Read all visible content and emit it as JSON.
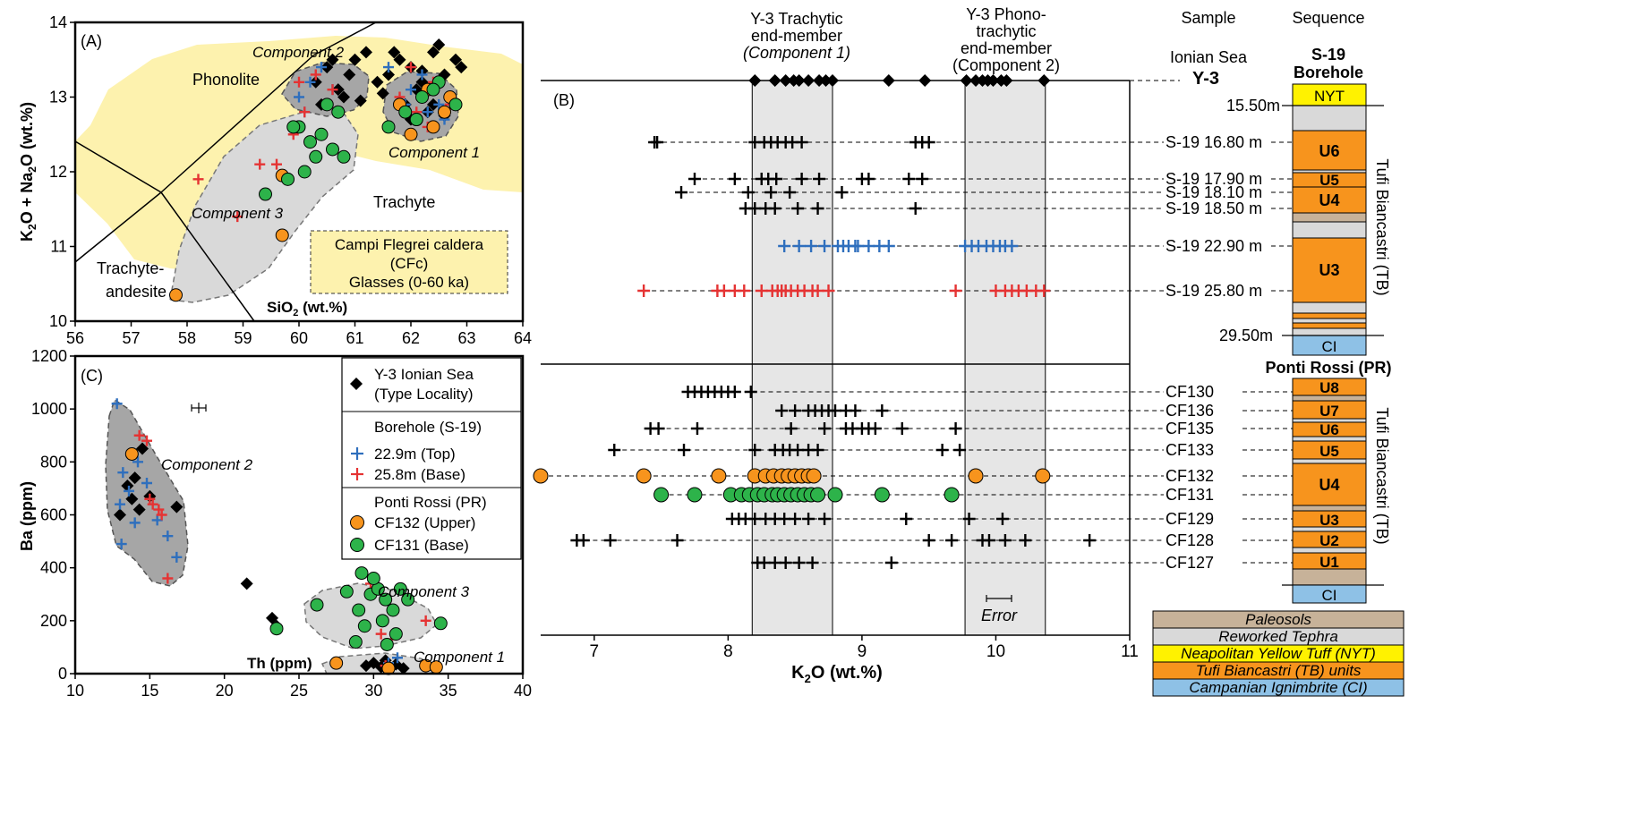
{
  "colors": {
    "tas_field": "#FDF2AE",
    "grey_field": "#D9D9D9",
    "dark_field": "#A6A6A6",
    "top_blue": "#2F6FBD",
    "base_red": "#E53333",
    "upper_orange": "#F7941D",
    "base_green": "#2DB34A",
    "paleosol": "#C7B299",
    "reworked": "#D9D9D9",
    "nyt": "#FFF200",
    "tb": "#F7941D",
    "ci": "#8EC1E6"
  },
  "chart_data": [
    {
      "id": "A",
      "type": "scatter",
      "panel_label": "(A)",
      "xlabel": "SiO2 (wt.%)",
      "ylabel": "K2O + Na2O (wt.%)",
      "xlim": [
        56,
        64
      ],
      "ylim": [
        10,
        14
      ],
      "x_ticks": [
        "56",
        "57",
        "58",
        "59",
        "60",
        "61",
        "62",
        "63",
        "64"
      ],
      "y_ticks": [
        "10",
        "11",
        "12",
        "13",
        "14"
      ],
      "field_labels": [
        "Phonolite",
        "Trachyte",
        "Trachyte-",
        "andesite"
      ],
      "component_labels": [
        "Component 2",
        "Component 1",
        "Component 3"
      ],
      "info_box": [
        "Campi Flegrei caldera",
        "(CFc)",
        "Glasses (0-60 ka)"
      ],
      "series": [
        {
          "name": "Y-3 Ionian Sea",
          "marker": "diamond",
          "color": "#000000",
          "x": [
            60.3,
            60.5,
            60.7,
            60.9,
            61.0,
            61.2,
            60.4,
            60.8,
            61.4,
            61.6,
            61.8,
            62.0,
            62.2,
            62.4,
            62.6,
            62.8,
            62.3,
            62.7,
            61.9,
            62.1,
            62.5,
            62.9,
            62.0,
            62.4,
            61.7,
            60.6,
            61.1,
            62.6,
            62.2,
            61.5
          ],
          "y": [
            13.2,
            13.4,
            13.1,
            13.3,
            13.5,
            13.6,
            12.9,
            13.0,
            13.2,
            13.3,
            13.5,
            13.4,
            13.2,
            13.6,
            13.3,
            13.5,
            12.8,
            13.0,
            12.9,
            13.1,
            13.7,
            13.4,
            12.7,
            12.9,
            13.6,
            13.5,
            12.95,
            12.75,
            13.35,
            13.05
          ]
        },
        {
          "name": "22.9m (Top)",
          "marker": "plus",
          "color": "#2F6FBD",
          "x": [
            60.0,
            60.2,
            60.4,
            60.6,
            60.1,
            61.9,
            62.0,
            62.3,
            62.6,
            61.6,
            62.2,
            62.5
          ],
          "y": [
            13.0,
            13.2,
            13.4,
            13.1,
            12.8,
            12.9,
            13.1,
            12.8,
            12.7,
            13.4,
            13.3,
            12.9
          ]
        },
        {
          "name": "25.8m (Base)",
          "marker": "plus",
          "color": "#E53333",
          "x": [
            58.2,
            58.9,
            59.3,
            59.6,
            59.9,
            60.1,
            60.3,
            60.6,
            60.0,
            61.8,
            62.1,
            62.4,
            62.7,
            62.0,
            62.3
          ],
          "y": [
            11.9,
            11.4,
            12.1,
            12.1,
            12.5,
            12.8,
            13.3,
            13.1,
            13.2,
            13.0,
            12.8,
            13.2,
            12.9,
            13.4,
            12.6
          ]
        },
        {
          "name": "CF132 (Upper)",
          "marker": "circle",
          "color": "#F7941D",
          "x": [
            57.8,
            59.7,
            59.7,
            61.8,
            62.1,
            62.4,
            62.6,
            62.3,
            62.7,
            62.0
          ],
          "y": [
            10.35,
            11.15,
            11.95,
            12.9,
            12.7,
            12.6,
            12.8,
            13.1,
            13.0,
            12.5
          ]
        },
        {
          "name": "CF131 (Base)",
          "marker": "circle",
          "color": "#2DB34A",
          "x": [
            59.4,
            59.8,
            60.0,
            60.2,
            60.4,
            60.6,
            60.8,
            60.1,
            60.5,
            59.9,
            60.3,
            60.7,
            61.6,
            61.9,
            62.2,
            62.5,
            62.8,
            62.1,
            62.4
          ],
          "y": [
            11.7,
            11.9,
            12.6,
            12.4,
            12.5,
            12.3,
            12.2,
            12.0,
            12.9,
            12.6,
            12.2,
            12.8,
            12.6,
            12.8,
            13.0,
            13.2,
            12.9,
            12.7,
            13.1
          ]
        }
      ]
    },
    {
      "id": "B",
      "type": "scatter",
      "panel_label": "(B)",
      "xlabel": "K2O (wt.%)",
      "xlim": [
        6.6,
        11.0
      ],
      "x_ticks": [
        "7",
        "8",
        "9",
        "10",
        "11"
      ],
      "band_titles": {
        "trachytic": [
          "Y-3 Trachytic",
          "end-member",
          "(Component 1)"
        ],
        "phono": [
          "Y-3 Phono-",
          "trachytic",
          "end-member",
          "(Component 2)"
        ]
      },
      "bands": {
        "component1": [
          8.18,
          8.78
        ],
        "component2": [
          9.77,
          10.37
        ]
      },
      "error_label": "Error",
      "column_headers": {
        "sample": "Sample",
        "sequence": "Sequence"
      },
      "y3_label": {
        "line1": "Ionian Sea",
        "line2": "Y-3"
      },
      "y3_values": [
        8.2,
        8.35,
        8.43,
        8.49,
        8.53,
        8.6,
        8.68,
        8.73,
        8.78,
        9.2,
        9.47,
        9.78,
        9.85,
        9.9,
        9.94,
        9.98,
        10.04,
        10.08,
        10.36
      ],
      "rows": [
        {
          "label": "S-19 16.80 m",
          "color": "#000000",
          "marker": "plus",
          "values": [
            7.45,
            7.47,
            8.2,
            8.27,
            8.32,
            8.37,
            8.43,
            8.48,
            8.55,
            9.4,
            9.45,
            9.5
          ]
        },
        {
          "label": "S-19 17.90 m",
          "color": "#000000",
          "marker": "plus",
          "values": [
            7.75,
            8.05,
            8.25,
            8.3,
            8.36,
            8.55,
            8.68,
            9.0,
            9.05,
            9.35,
            9.45
          ]
        },
        {
          "label": "S-19 18.10 m",
          "color": "#000000",
          "marker": "plus",
          "values": [
            7.65,
            8.15,
            8.32,
            8.46,
            8.85
          ]
        },
        {
          "label": "S-19 18.50 m",
          "color": "#000000",
          "marker": "plus",
          "values": [
            8.13,
            8.2,
            8.28,
            8.35,
            8.52,
            8.67,
            9.4
          ]
        },
        {
          "label": "S-19 22.90 m",
          "color": "#2F6FBD",
          "marker": "plus",
          "values": [
            8.42,
            8.53,
            8.62,
            8.72,
            8.82,
            8.86,
            8.9,
            8.95,
            8.97,
            9.05,
            9.13,
            9.2,
            9.77,
            9.82,
            9.87,
            9.93,
            9.98,
            10.03,
            10.07,
            10.12
          ]
        },
        {
          "label": "S-19 25.80 m",
          "color": "#E53333",
          "marker": "plus",
          "values": [
            7.37,
            7.92,
            7.97,
            8.05,
            8.12,
            8.25,
            8.33,
            8.37,
            8.4,
            8.43,
            8.47,
            8.52,
            8.57,
            8.63,
            8.67,
            8.75,
            9.7,
            10.0,
            10.07,
            10.12,
            10.17,
            10.23,
            10.3,
            10.36
          ]
        },
        {
          "label": "CF130",
          "color": "#000000",
          "marker": "plus",
          "values": [
            7.7,
            7.75,
            7.8,
            7.85,
            7.9,
            7.95,
            8.0,
            8.05,
            8.17
          ]
        },
        {
          "label": "CF136",
          "color": "#000000",
          "marker": "plus",
          "values": [
            8.4,
            8.5,
            8.6,
            8.65,
            8.7,
            8.75,
            8.8,
            8.88,
            8.95,
            9.15
          ]
        },
        {
          "label": "CF135",
          "color": "#000000",
          "marker": "plus",
          "values": [
            7.42,
            7.48,
            7.77,
            8.47,
            8.72,
            8.88,
            8.93,
            9.0,
            9.05,
            9.1,
            9.3,
            9.7
          ]
        },
        {
          "label": "CF133",
          "color": "#000000",
          "marker": "plus",
          "values": [
            7.15,
            7.67,
            8.2,
            8.35,
            8.41,
            8.46,
            8.52,
            8.6,
            8.67,
            9.6,
            9.73
          ]
        },
        {
          "label": "CF132",
          "color": "#F7941D",
          "marker": "circle",
          "values": [
            6.6,
            7.37,
            7.93,
            8.2,
            8.28,
            8.34,
            8.4,
            8.45,
            8.5,
            8.55,
            8.6,
            8.64,
            9.85,
            10.35
          ]
        },
        {
          "label": "CF131",
          "color": "#2DB34A",
          "marker": "circle",
          "values": [
            7.5,
            7.75,
            8.02,
            8.1,
            8.16,
            8.22,
            8.27,
            8.33,
            8.37,
            8.42,
            8.47,
            8.52,
            8.57,
            8.62,
            8.67,
            8.8,
            9.15,
            9.67
          ]
        },
        {
          "label": "CF129",
          "color": "#000000",
          "marker": "plus",
          "values": [
            8.03,
            8.08,
            8.13,
            8.2,
            8.28,
            8.35,
            8.42,
            8.5,
            8.6,
            8.72,
            9.33,
            9.8,
            10.05
          ]
        },
        {
          "label": "CF128",
          "color": "#000000",
          "marker": "plus",
          "values": [
            6.87,
            6.92,
            7.12,
            7.62,
            9.5,
            9.67,
            9.9,
            9.95,
            10.07,
            10.22,
            10.7
          ]
        },
        {
          "label": "CF127",
          "color": "#000000",
          "marker": "plus",
          "values": [
            8.22,
            8.27,
            8.35,
            8.43,
            8.53,
            8.63,
            9.22
          ]
        }
      ],
      "sequence": {
        "s19_title": [
          "S-19",
          "Borehole"
        ],
        "depth_labels": [
          "15.50m",
          "29.50m"
        ],
        "pr_title": "Ponti Rossi (PR)",
        "unit_labels": {
          "nyt": "NYT",
          "ci": "CI",
          "u1": "U1",
          "u2": "U2",
          "u3": "U3",
          "u4": "U4",
          "u5": "U5",
          "u6": "U6",
          "u7": "U7",
          "u8": "U8"
        },
        "tb_side_label": "Tufi Biancastri (TB)"
      },
      "legend": [
        "Paleosols",
        "Reworked Tephra",
        "Neapolitan Yellow Tuff (NYT)",
        "Tufi Biancastri (TB) units",
        "Campanian Ignimbrite (CI)"
      ]
    },
    {
      "id": "C",
      "type": "scatter",
      "panel_label": "(C)",
      "xlabel": "Th (ppm)",
      "ylabel": "Ba (ppm)",
      "xlim": [
        10,
        40
      ],
      "ylim": [
        0,
        1200
      ],
      "x_ticks": [
        "10",
        "15",
        "20",
        "25",
        "30",
        "35",
        "40"
      ],
      "y_ticks": [
        "0",
        "200",
        "400",
        "600",
        "800",
        "1000",
        "1200"
      ],
      "component_labels": [
        "Component 2",
        "Component 3",
        "Component 1"
      ],
      "legend": {
        "y3_line1": "Y-3 Ionian Sea",
        "y3_line2": "(Type Locality)",
        "bh_title": "Borehole (S-19)",
        "bh_top": "22.9m (Top)",
        "bh_base": "25.8m (Base)",
        "pr_title": "Ponti Rossi (PR)",
        "pr_upper": "CF132 (Upper)",
        "pr_base": "CF131 (Base)"
      },
      "series": [
        {
          "name": "Y-3 Ionian Sea",
          "marker": "diamond",
          "color": "#000000",
          "x": [
            13.0,
            13.5,
            14.0,
            14.5,
            15.0,
            13.8,
            14.3,
            16.8,
            21.5,
            23.2,
            23.5,
            29.5,
            30.0,
            30.5,
            31.5,
            32.0,
            30.8
          ],
          "y": [
            600,
            710,
            740,
            850,
            670,
            660,
            620,
            630,
            340,
            210,
            180,
            30,
            40,
            25,
            35,
            20,
            50
          ]
        },
        {
          "name": "22.9m (Top)",
          "marker": "plus",
          "color": "#2F6FBD",
          "x": [
            12.8,
            13.2,
            13.6,
            14.2,
            14.8,
            13.1,
            14.0,
            15.5,
            16.2,
            16.8,
            13.0,
            31.0,
            31.6
          ],
          "y": [
            1020,
            760,
            690,
            800,
            720,
            490,
            570,
            580,
            520,
            440,
            640,
            40,
            60
          ]
        },
        {
          "name": "25.8m (Base)",
          "marker": "plus",
          "color": "#E53333",
          "x": [
            14.3,
            14.8,
            15.2,
            15.6,
            15.0,
            15.8,
            16.2,
            29.8,
            30.5,
            31.2,
            33.5,
            30.8
          ],
          "y": [
            900,
            880,
            640,
            620,
            660,
            600,
            360,
            340,
            150,
            130,
            200,
            30
          ]
        },
        {
          "name": "CF132 (Upper)",
          "marker": "circle",
          "color": "#F7941D",
          "x": [
            13.8,
            27.5,
            33.5,
            34.2,
            31.0
          ],
          "y": [
            830,
            40,
            30,
            25,
            20
          ]
        },
        {
          "name": "CF131 (Base)",
          "marker": "circle",
          "color": "#2DB34A",
          "x": [
            23.5,
            26.2,
            28.2,
            29.2,
            29.8,
            30.3,
            30.8,
            31.3,
            29.4,
            30.6,
            31.5,
            32.3,
            29.0,
            30.0,
            31.8,
            34.5,
            28.8,
            30.9
          ],
          "y": [
            170,
            260,
            310,
            380,
            300,
            320,
            280,
            240,
            180,
            200,
            150,
            280,
            240,
            360,
            320,
            190,
            120,
            110
          ]
        }
      ]
    }
  ]
}
